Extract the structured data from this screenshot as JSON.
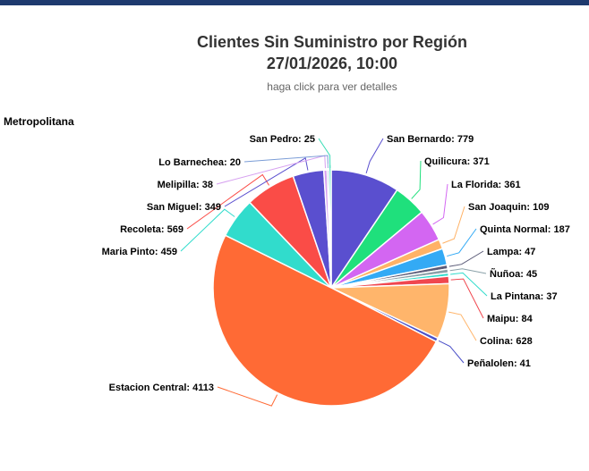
{
  "header": {
    "title_line1": "Clientes Sin Suministro por Región",
    "title_line2": "27/01/2026, 10:00",
    "subtitle": "haga click para ver detalles"
  },
  "region_label": "Metropolitana",
  "chart_data": {
    "type": "pie",
    "title": "Clientes Sin Suministro por Región",
    "subtitle": "haga click para ver detalles",
    "slices": [
      {
        "name": "San Bernardo",
        "value": 779,
        "color": "#5a4fcf"
      },
      {
        "name": "Quilicura",
        "value": 371,
        "color": "#1fe07c"
      },
      {
        "name": "La Florida",
        "value": 361,
        "color": "#d366f2"
      },
      {
        "name": "San Joaquin",
        "value": 109,
        "color": "#ffb266"
      },
      {
        "name": "Quinta Normal",
        "value": 187,
        "color": "#33aaf5"
      },
      {
        "name": "Lampa",
        "value": 47,
        "color": "#5b5b78"
      },
      {
        "name": "Ñuñoa",
        "value": 45,
        "color": "#8aa0a8"
      },
      {
        "name": "La Pintana",
        "value": 37,
        "color": "#31dccc"
      },
      {
        "name": "Maipu",
        "value": 84,
        "color": "#f0474f"
      },
      {
        "name": "Colina",
        "value": 628,
        "color": "#ffb56b"
      },
      {
        "name": "Peñalolen",
        "value": 41,
        "color": "#4a4fc8"
      },
      {
        "name": "Estacion Central",
        "value": 4113,
        "color": "#ff6a35"
      },
      {
        "name": "Maria Pinto",
        "value": 459,
        "color": "#31dccc"
      },
      {
        "name": "Recoleta",
        "value": 569,
        "color": "#fa4c47"
      },
      {
        "name": "San Miguel",
        "value": 349,
        "color": "#5a4fcf"
      },
      {
        "name": "Melipilla",
        "value": 38,
        "color": "#d6a0f0"
      },
      {
        "name": "Lo Barnechea",
        "value": 20,
        "color": "#7a9cd6"
      },
      {
        "name": "San Pedro",
        "value": 25,
        "color": "#34dcb4"
      }
    ]
  }
}
